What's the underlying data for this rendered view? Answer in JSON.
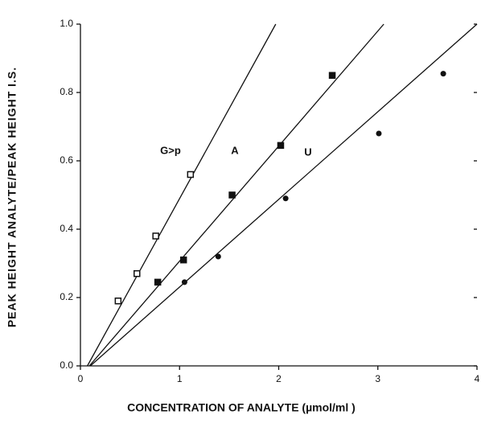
{
  "chart_data": {
    "type": "scatter",
    "x_label": "CONCENTRATION OF ANALYTE (µmol/ml )",
    "y_label": "PEAK HEIGHT ANALYTE/PEAK HEIGHT I.S.",
    "xlim": [
      0,
      4
    ],
    "xticks": [
      0,
      1,
      2,
      3,
      4
    ],
    "ylim": [
      0,
      1
    ],
    "yticks": [
      {
        "value": 0,
        "label": "0.0"
      },
      0.2,
      0.4,
      0.6,
      0.8,
      {
        "value": 1,
        "label": "1.0"
      }
    ],
    "series": [
      {
        "name": "G>p",
        "color": "#111",
        "marker": "open-square",
        "x": [
          0.38,
          0.57,
          0.76,
          1.11
        ],
        "values": [
          0.19,
          0.27,
          0.38,
          0.56
        ],
        "fit": {
          "x": [
            0.07,
            1.97
          ],
          "values": [
            0,
            1
          ]
        }
      },
      {
        "name": "A",
        "color": "#111",
        "marker": "square",
        "x": [
          0.78,
          1.04,
          1.53,
          2.02,
          2.54
        ],
        "values": [
          0.245,
          0.31,
          0.5,
          0.645,
          0.85
        ],
        "fit": {
          "x": [
            0.09,
            3.06
          ],
          "values": [
            0,
            1
          ]
        }
      },
      {
        "name": "U",
        "color": "#111",
        "marker": "circle",
        "x": [
          1.05,
          1.39,
          2.07,
          3.01,
          3.66
        ],
        "values": [
          0.245,
          0.32,
          0.49,
          0.68,
          0.855
        ],
        "fit": {
          "x": [
            0.1,
            4
          ],
          "values": [
            0,
            1
          ]
        }
      }
    ]
  }
}
